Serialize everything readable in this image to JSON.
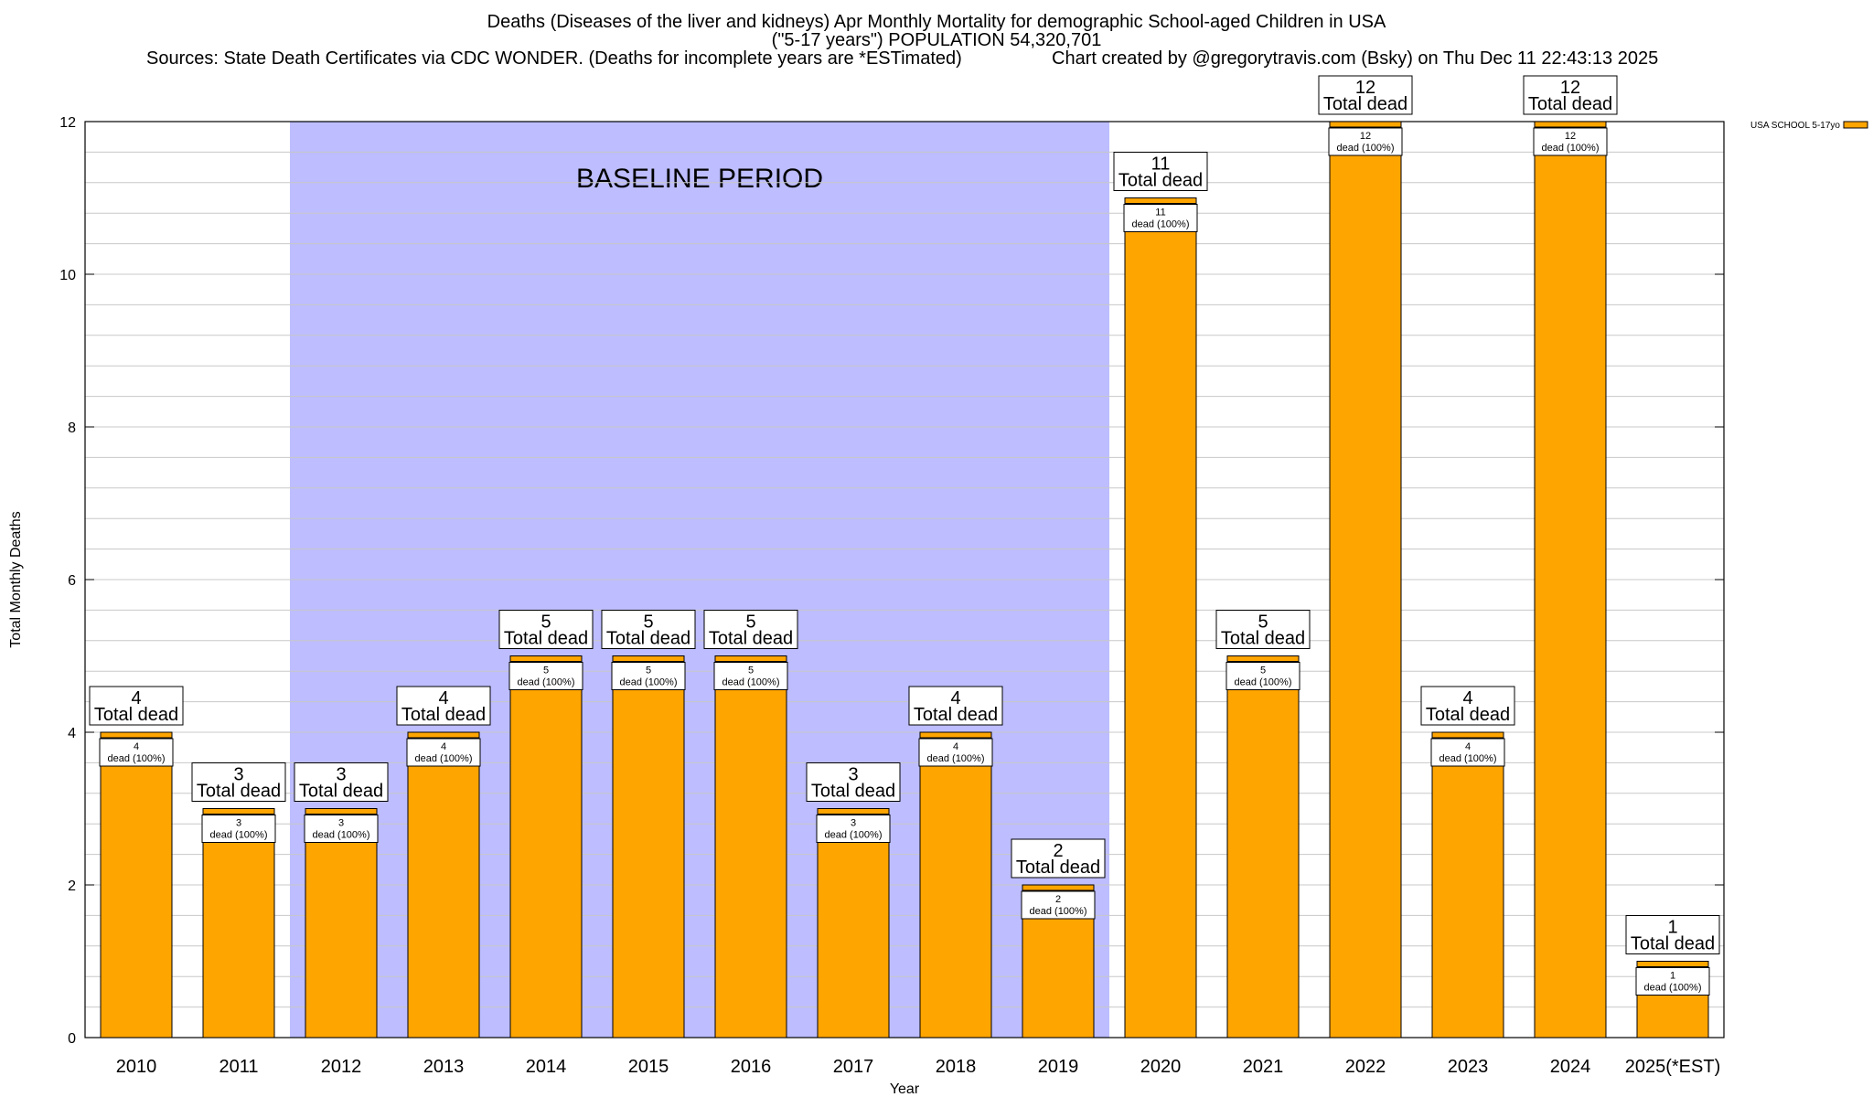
{
  "chart_data": {
    "type": "bar",
    "title": "Deaths (Diseases of the liver and kidneys) Apr Monthly Mortality for demographic School-aged Children in USA",
    "subtitle": "(\"5-17 years\") POPULATION 54,320,701",
    "source": "Sources: State Death Certificates via CDC WONDER. (Deaths for incomplete years are *ESTimated)",
    "credit": "Chart created by @gregorytravis.com (Bsky) on Thu Dec 11 22:43:13 2025",
    "xlabel": "Year",
    "ylabel": "Total Monthly Deaths",
    "ylim": [
      0,
      12
    ],
    "yticks": [
      0,
      2,
      4,
      6,
      8,
      10,
      12
    ],
    "categories": [
      "2010",
      "2011",
      "2012",
      "2013",
      "2014",
      "2015",
      "2016",
      "2017",
      "2018",
      "2019",
      "2020",
      "2021",
      "2022",
      "2023",
      "2024",
      "2025(*EST)"
    ],
    "series": [
      {
        "name": "USA SCHOOL 5-17yo",
        "color": "#FFA500",
        "values": [
          4,
          3,
          3,
          4,
          5,
          5,
          5,
          3,
          4,
          2,
          11,
          5,
          12,
          4,
          12,
          1
        ]
      }
    ],
    "baseline": {
      "label": "BASELINE PERIOD",
      "from": "2012",
      "to": "2019",
      "color": "#BDBDFF"
    },
    "bar_label_suffix": "Total dead",
    "inner_label_text": "dead (100%)",
    "grid": true,
    "legend": "top-right"
  }
}
